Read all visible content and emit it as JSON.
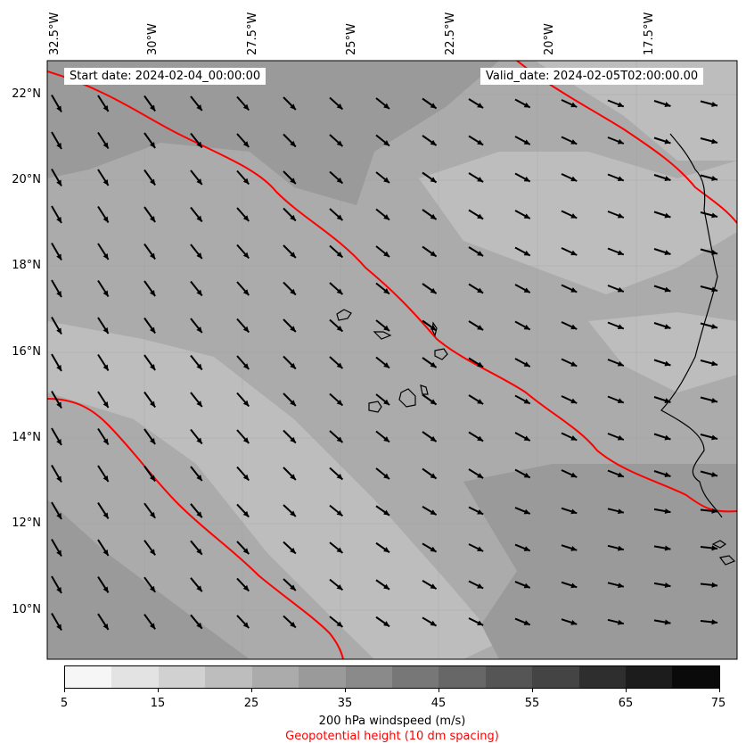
{
  "header": {
    "start_date": "Start date: 2024-02-04_00:00:00",
    "valid_date": "Valid_date: 2024-02-05T02:00:00.00"
  },
  "axes": {
    "lon_labels": [
      "32.5°W",
      "30°W",
      "27.5°W",
      "25°W",
      "22.5°W",
      "20°W",
      "17.5°W"
    ],
    "lat_labels": [
      "22°N",
      "20°N",
      "18°N",
      "16°N",
      "14°N",
      "12°N",
      "10°N"
    ]
  },
  "colorbar": {
    "tick_labels": [
      "5",
      "15",
      "25",
      "35",
      "45",
      "55",
      "65",
      "75"
    ],
    "colors": [
      "#f6f6f6",
      "#e3e3e3",
      "#d1d1d1",
      "#bdbdbd",
      "#ababab",
      "#9a9a9a",
      "#8a8a8a",
      "#777777",
      "#676767",
      "#555555",
      "#444444",
      "#2e2e2e",
      "#1c1c1c",
      "#0a0a0a"
    ],
    "label": "200 hPa windspeed (m/s)",
    "label2": "Geopotential height (10 dm spacing)",
    "label2_color": "#ff0000"
  },
  "map": {
    "contour_color": "#ff0000",
    "arrow_color": "#000000",
    "coastline_color": "#000000",
    "icons": [
      "wind-arrow-icon"
    ]
  }
}
